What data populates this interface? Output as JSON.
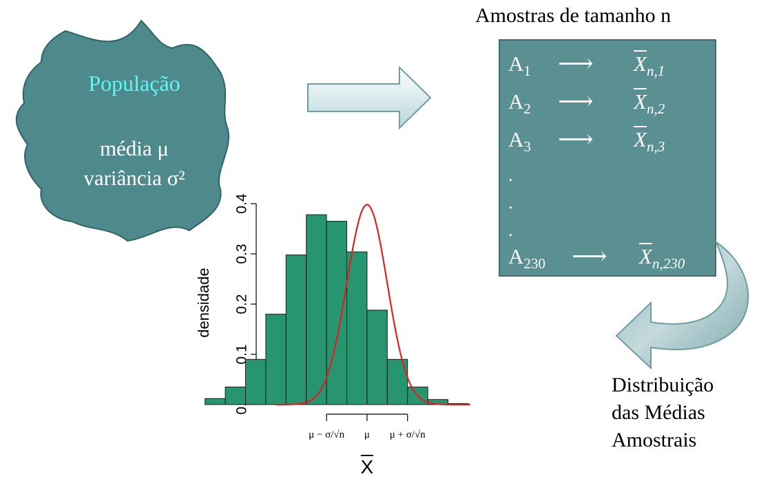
{
  "population": {
    "title": "População",
    "mean_line": "média μ",
    "variance_line": "variância σ²",
    "title_color": "#5ff7f5",
    "fill_color": "#4e8a8c"
  },
  "samples": {
    "title": "Amostras de tamanho n",
    "box_color": "#5b9092",
    "arrow_glyph": "⟶",
    "rows": [
      {
        "label": "A",
        "sub": "1",
        "xbar": "X",
        "xsub": "n,1"
      },
      {
        "label": "A",
        "sub": "2",
        "xbar": "X",
        "xsub": "n,2"
      },
      {
        "label": "A",
        "sub": "3",
        "xbar": "X",
        "xsub": "n,3"
      },
      {
        "label": "A",
        "sub": "230",
        "xbar": "X",
        "xsub": "n,230"
      }
    ],
    "dots": [
      ".",
      ".",
      "."
    ]
  },
  "distribution_label": [
    "Distribuição",
    "das Médias",
    "Amostrais"
  ],
  "chart_data": {
    "type": "bar",
    "ylabel": "densidade",
    "xlabel": "X",
    "xlabel_overline": true,
    "ylim": [
      0,
      0.4
    ],
    "yticks": [
      "0.0",
      "0.1",
      "0.2",
      "0.3",
      "0.4"
    ],
    "bin_edges_sd": [
      -4.5,
      -3.5,
      -2.5,
      -1.5,
      -0.5,
      0.5,
      1.5,
      2.5,
      3.5,
      4.5,
      5.5,
      6.5,
      7.5,
      8.5
    ],
    "x_center_sd": 3.5,
    "values": [
      0.012,
      0.035,
      0.09,
      0.18,
      0.298,
      0.378,
      0.365,
      0.304,
      0.188,
      0.09,
      0.035,
      0.01,
      0.002
    ],
    "bar_color": "#27956f",
    "curve_color": "#e02020",
    "curve": "normal density",
    "x_ticks": [
      "μ − σ/√n",
      "μ",
      "μ + σ/√n"
    ]
  }
}
